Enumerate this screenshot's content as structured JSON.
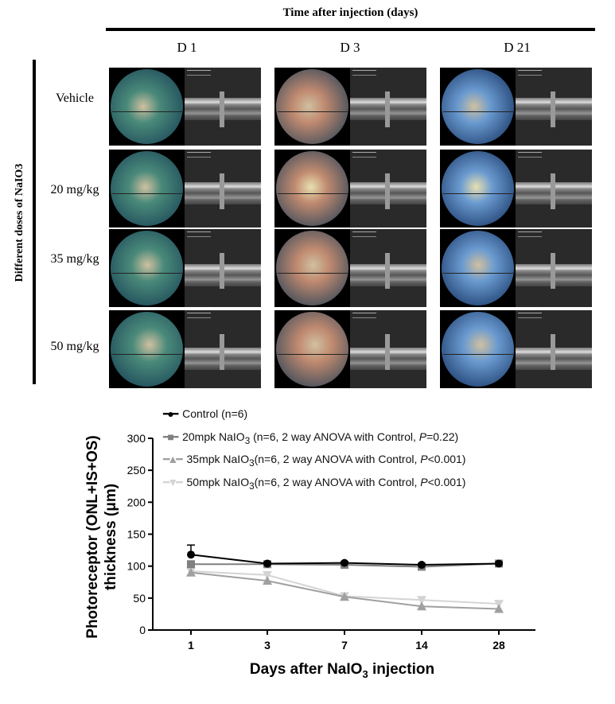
{
  "figure": {
    "top_title": "Time after injection (days)",
    "columns": [
      "D 1",
      "D 3",
      "D 21"
    ],
    "side_title": "Different doses of NaIO3",
    "rows": [
      "Vehicle",
      "20 mg/kg",
      "35 mg/kg",
      "50 mg/kg"
    ]
  },
  "chart_data": {
    "type": "line",
    "xlabel": "Days after NaIO3 injection",
    "ylabel_line1": "Photoreceptor (ONL+IS+OS)",
    "ylabel_line2": "thickness (μm)",
    "categories": [
      "1",
      "3",
      "7",
      "14",
      "28"
    ],
    "ylim": [
      0,
      300
    ],
    "yticks": [
      0,
      50,
      100,
      150,
      200,
      250,
      300
    ],
    "grid": false,
    "legend_placement": "top",
    "series": [
      {
        "name": "Control (n=6)",
        "name_sub": "",
        "name_rest": "",
        "p": "",
        "color": "#000000",
        "marker": "circle",
        "values": [
          118,
          104,
          105,
          102,
          104
        ],
        "error": [
          15,
          2,
          2,
          2,
          2
        ]
      },
      {
        "name": "20mpk NaIO",
        "name_sub": "3",
        "name_rest": " (n=6, 2 way ANOVA with Control, ",
        "p": "=0.22)",
        "color": "#808080",
        "marker": "square",
        "values": [
          103,
          103,
          102,
          99,
          104
        ]
      },
      {
        "name": "35mpk NaIO",
        "name_sub": "3",
        "name_rest": "(n=6, 2 way ANOVA with Control, ",
        "p": "<0.001)",
        "color": "#a0a0a0",
        "marker": "triangle-up",
        "values": [
          90,
          77,
          52,
          37,
          33
        ]
      },
      {
        "name": "50mpk NaIO",
        "name_sub": "3",
        "name_rest": "(n=6, 2 way ANOVA with Control, ",
        "p": "<0.001)",
        "color": "#d4d4d4",
        "marker": "triangle-down",
        "values": [
          92,
          86,
          53,
          47,
          41
        ]
      }
    ]
  }
}
